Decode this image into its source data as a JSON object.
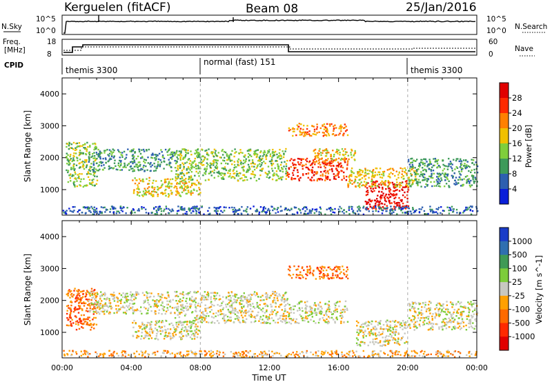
{
  "header": {
    "radar": "Kerguelen (fitACF)",
    "beam": "Beam 08",
    "date": "25/Jan/2016"
  },
  "panels": {
    "nsky_label": "N.Sky",
    "nsearch_label": "N.Search",
    "freq_label_1": "Freq.",
    "freq_label_2": "[MHz]",
    "nave_label": "Nave",
    "cpid_label": "CPID",
    "log_ticks_left": [
      "10^5",
      "10^0"
    ],
    "log_ticks_right": [
      "10^5",
      "10^0"
    ],
    "freq_ticks": [
      "18",
      "8"
    ],
    "nave_ticks": [
      "60",
      "0"
    ],
    "cpid_segments": [
      {
        "label": "themis 3300",
        "start_hour": 0,
        "end_hour": 8
      },
      {
        "label": "normal (fast) 151",
        "start_hour": 8,
        "end_hour": 20
      },
      {
        "label": "themis 3300",
        "start_hour": 20,
        "end_hour": 24
      }
    ]
  },
  "chart_data": [
    {
      "type": "heatmap",
      "name": "power",
      "ylabel": "Slant Range [km]",
      "xlim": [
        0,
        24
      ],
      "ylim": [
        200,
        4500
      ],
      "y_ticks": [
        1000,
        2000,
        3000,
        4000
      ],
      "colorbar_label": "Power [dB]",
      "colorbar_ticks": [
        "4",
        "8",
        "12",
        "16",
        "20",
        "24",
        "28"
      ],
      "colorbar_colors": [
        "#0a1fd8",
        "#2d5fb0",
        "#3e9a5a",
        "#7fce3c",
        "#f0c000",
        "#ff8000",
        "#ff2a00",
        "#e00000"
      ],
      "regions": [
        {
          "x0": 0.2,
          "x1": 2.0,
          "y0": 1100,
          "y1": 2500,
          "level": 3
        },
        {
          "x0": 1.5,
          "x1": 6.5,
          "y0": 1600,
          "y1": 2300,
          "level": 2
        },
        {
          "x0": 4.0,
          "x1": 8.0,
          "y0": 800,
          "y1": 1400,
          "level": 4
        },
        {
          "x0": 6.5,
          "x1": 13.0,
          "y0": 1300,
          "y1": 2300,
          "level": 3
        },
        {
          "x0": 13.0,
          "x1": 16.5,
          "y0": 1300,
          "y1": 2000,
          "level": 6
        },
        {
          "x0": 13.0,
          "x1": 16.5,
          "y0": 2700,
          "y1": 3100,
          "level": 5
        },
        {
          "x0": 14.5,
          "x1": 17.0,
          "y0": 1900,
          "y1": 2300,
          "level": 4
        },
        {
          "x0": 17.5,
          "x1": 20.0,
          "y0": 400,
          "y1": 1300,
          "level": 7
        },
        {
          "x0": 16.5,
          "x1": 20.5,
          "y0": 1100,
          "y1": 1700,
          "level": 4
        },
        {
          "x0": 20.0,
          "x1": 24.0,
          "y0": 1100,
          "y1": 2000,
          "level": 2
        },
        {
          "x0": 0.0,
          "x1": 24.0,
          "y0": 250,
          "y1": 500,
          "level": 1
        }
      ]
    },
    {
      "type": "heatmap",
      "name": "velocity",
      "xlabel": "Time UT",
      "ylabel": "Slant Range [km]",
      "xlim": [
        0,
        24
      ],
      "ylim": [
        200,
        4500
      ],
      "x_ticks": [
        "00:00",
        "04:00",
        "08:00",
        "12:00",
        "16:00",
        "20:00",
        "00:00"
      ],
      "y_ticks": [
        1000,
        2000,
        3000,
        4000
      ],
      "colorbar_label": "Velocity [m s^-1]",
      "colorbar_ticks": [
        "1000",
        "500",
        "100",
        "25",
        "-25",
        "-100",
        "-500",
        "-1000"
      ],
      "colorbar_colors": [
        "#1a3cc8",
        "#2f6fb0",
        "#3f9a55",
        "#7dcc3a",
        "#c8c8c0",
        "#ffa000",
        "#ff6a00",
        "#ff2a00",
        "#e00000"
      ],
      "regions": [
        {
          "x0": 0.2,
          "x1": 2.0,
          "y0": 1100,
          "y1": 2400,
          "level": 6
        },
        {
          "x0": 1.5,
          "x1": 6.5,
          "y0": 1600,
          "y1": 2300,
          "level": 4
        },
        {
          "x0": 4.0,
          "x1": 8.0,
          "y0": 800,
          "y1": 1400,
          "level": 4
        },
        {
          "x0": 6.5,
          "x1": 13.0,
          "y0": 1300,
          "y1": 2300,
          "level": 4
        },
        {
          "x0": 13.0,
          "x1": 16.5,
          "y0": 1300,
          "y1": 2000,
          "level": 4
        },
        {
          "x0": 13.0,
          "x1": 16.5,
          "y0": 2700,
          "y1": 3100,
          "level": 6
        },
        {
          "x0": 17.0,
          "x1": 20.0,
          "y0": 600,
          "y1": 1400,
          "level": 4
        },
        {
          "x0": 20.0,
          "x1": 24.0,
          "y0": 1100,
          "y1": 2000,
          "level": 4
        },
        {
          "x0": 0.0,
          "x1": 24.0,
          "y0": 250,
          "y1": 450,
          "level": 5
        }
      ]
    }
  ]
}
